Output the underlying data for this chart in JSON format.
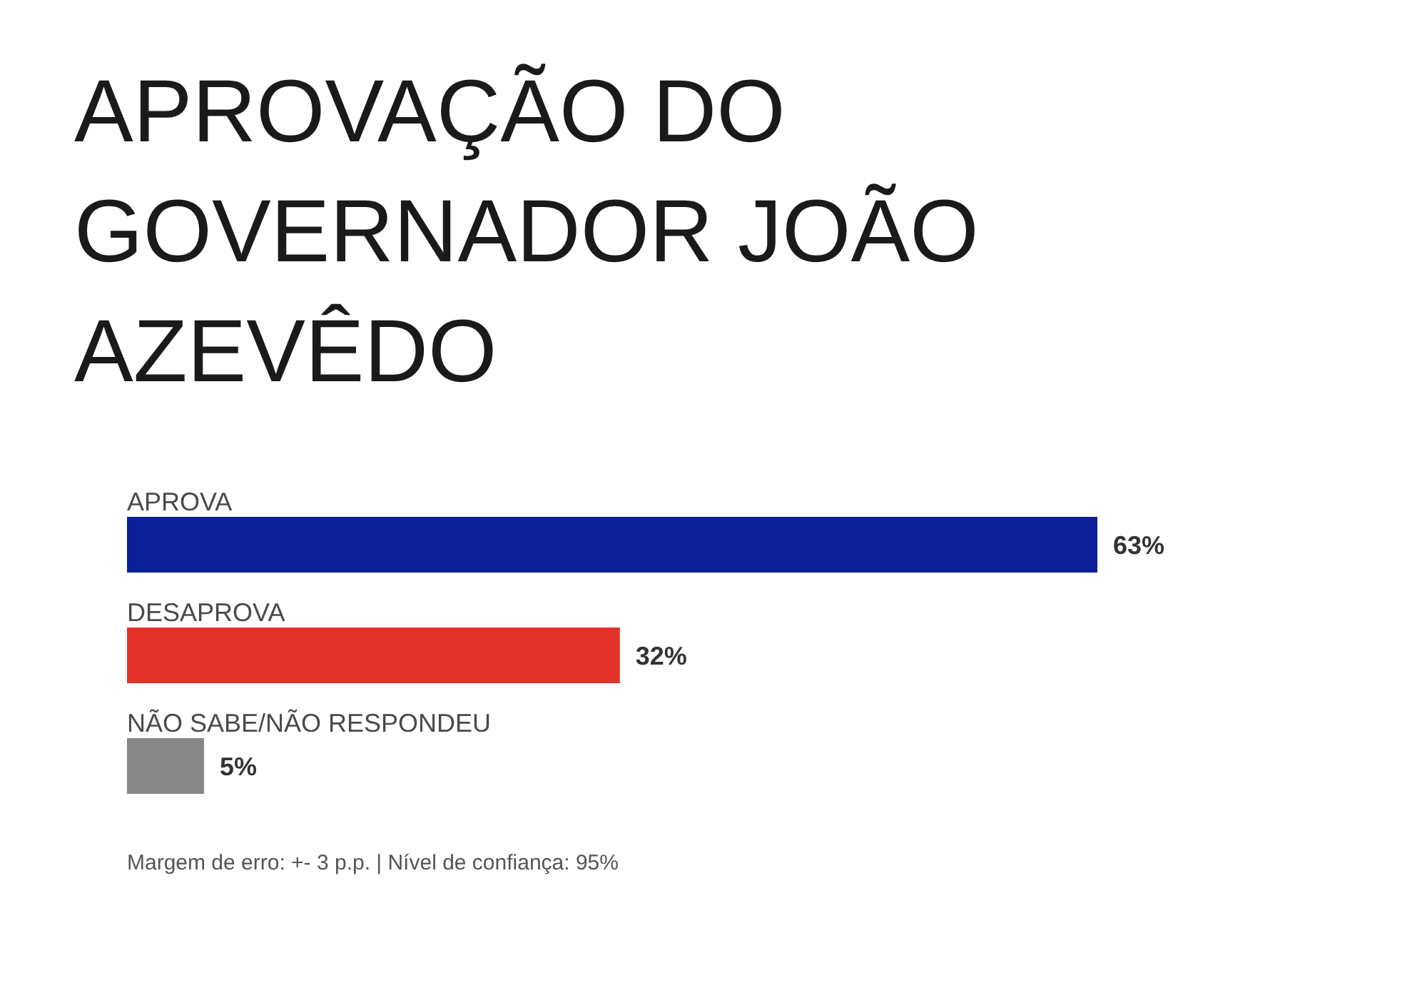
{
  "chart_data": {
    "type": "bar",
    "orientation": "horizontal",
    "title": "APROVAÇÃO DO GOVERNADOR JOÃO AZEVÊDO",
    "categories": [
      "APROVA",
      "DESAPROVA",
      "NÃO SABE/NÃO RESPONDEU"
    ],
    "values": [
      63,
      32,
      5
    ],
    "colors": [
      "#0c1f96",
      "#e4322b",
      "#878787"
    ],
    "value_labels": [
      "63%",
      "32%",
      "5%"
    ],
    "annotations": [
      "Margem de erro: +- 3 p.p. | Nível de confiança: 95%"
    ]
  }
}
